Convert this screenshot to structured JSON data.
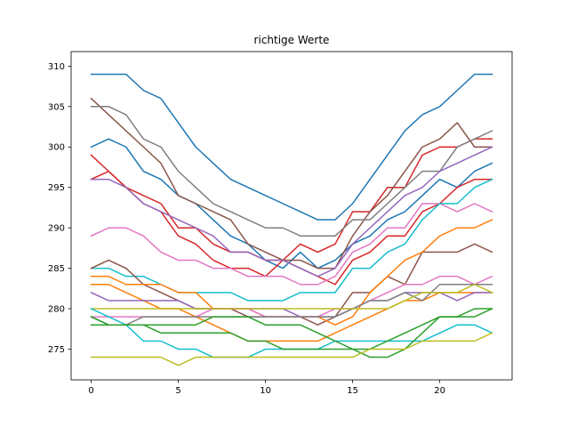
{
  "chart_data": {
    "type": "line",
    "title": "richtige Werte",
    "xlabel": "",
    "ylabel": "",
    "xlim": [
      -1.15,
      24.15
    ],
    "ylim": [
      271.2,
      311.8
    ],
    "grid": false,
    "legend": "none",
    "x": [
      0,
      1,
      2,
      3,
      4,
      5,
      6,
      7,
      8,
      9,
      10,
      11,
      12,
      13,
      14,
      15,
      16,
      17,
      18,
      19,
      20,
      21,
      22,
      23
    ],
    "x_ticks": [
      0,
      5,
      10,
      15,
      20
    ],
    "x_tick_labels": [
      "0",
      "5",
      "10",
      "15",
      "20"
    ],
    "y_ticks": [
      275,
      280,
      285,
      290,
      295,
      300,
      305,
      310
    ],
    "y_tick_labels": [
      "275",
      "280",
      "285",
      "290",
      "295",
      "300",
      "305",
      "310"
    ],
    "series": [
      {
        "color": "#1f77b4",
        "values": [
          309,
          309,
          309,
          307,
          306,
          303,
          300,
          298,
          296,
          295,
          294,
          293,
          292,
          291,
          291,
          293,
          296,
          299,
          302,
          304,
          305,
          307,
          309,
          309
        ]
      },
      {
        "color": "#1f77b4",
        "values": [
          300,
          301,
          300,
          297,
          296,
          294,
          293,
          291,
          289,
          288,
          286,
          285,
          287,
          285,
          286,
          288,
          289,
          291,
          292,
          294,
          296,
          295,
          297,
          298
        ]
      },
      {
        "color": "#d62728",
        "values": [
          299,
          297,
          295,
          293,
          292,
          289,
          288,
          286,
          285,
          285,
          284,
          286,
          288,
          287,
          288,
          292,
          292,
          295,
          295,
          299,
          300,
          300,
          301,
          301
        ]
      },
      {
        "color": "#d62728",
        "values": [
          296,
          297,
          295,
          294,
          293,
          290,
          290,
          288,
          287,
          287,
          286,
          286,
          285,
          284,
          283,
          286,
          287,
          289,
          289,
          292,
          293,
          295,
          296,
          296
        ]
      },
      {
        "color": "#8c564b",
        "values": [
          306,
          304,
          302,
          300,
          298,
          294,
          293,
          292,
          291,
          288,
          287,
          286,
          286,
          285,
          285,
          289,
          292,
          294,
          297,
          300,
          301,
          303,
          300,
          300
        ]
      },
      {
        "color": "#7f7f7f",
        "values": [
          305,
          305,
          304,
          301,
          300,
          297,
          295,
          293,
          292,
          291,
          290,
          290,
          289,
          289,
          289,
          291,
          291,
          293,
          295,
          297,
          297,
          300,
          301,
          302
        ]
      },
      {
        "color": "#9467bd",
        "values": [
          296,
          296,
          295,
          293,
          292,
          291,
          290,
          289,
          287,
          287,
          286,
          286,
          285,
          284,
          285,
          288,
          290,
          292,
          294,
          295,
          297,
          298,
          299,
          300
        ]
      },
      {
        "color": "#e377c2",
        "values": [
          289,
          290,
          290,
          289,
          287,
          286,
          286,
          285,
          285,
          284,
          284,
          284,
          283,
          283,
          284,
          287,
          288,
          290,
          290,
          293,
          293,
          292,
          293,
          292
        ]
      },
      {
        "color": "#17becf",
        "values": [
          285,
          285,
          284,
          284,
          283,
          282,
          282,
          282,
          282,
          281,
          281,
          281,
          282,
          282,
          282,
          285,
          285,
          287,
          288,
          291,
          293,
          293,
          295,
          296
        ]
      },
      {
        "color": "#8c564b",
        "values": [
          285,
          286,
          285,
          283,
          282,
          281,
          280,
          280,
          280,
          279,
          279,
          279,
          279,
          278,
          279,
          282,
          282,
          284,
          283,
          287,
          287,
          287,
          288,
          287
        ]
      },
      {
        "color": "#ff7f0e",
        "values": [
          284,
          284,
          283,
          283,
          283,
          282,
          282,
          280,
          280,
          280,
          279,
          279,
          279,
          279,
          278,
          279,
          282,
          284,
          286,
          287,
          289,
          290,
          290,
          291
        ]
      },
      {
        "color": "#ff7f0e",
        "values": [
          283,
          283,
          282,
          281,
          280,
          280,
          279,
          278,
          277,
          276,
          276,
          276,
          276,
          276,
          277,
          278,
          279,
          280,
          281,
          281,
          282,
          282,
          282,
          282
        ]
      },
      {
        "color": "#9467bd",
        "values": [
          282,
          281,
          281,
          281,
          281,
          281,
          280,
          280,
          280,
          280,
          280,
          280,
          279,
          279,
          279,
          280,
          281,
          281,
          282,
          282,
          282,
          281,
          282,
          282
        ]
      },
      {
        "color": "#e377c2",
        "values": [
          279,
          279,
          279,
          279,
          279,
          279,
          279,
          280,
          280,
          280,
          279,
          279,
          279,
          279,
          280,
          280,
          281,
          282,
          283,
          283,
          284,
          284,
          283,
          284
        ]
      },
      {
        "color": "#7f7f7f",
        "values": [
          279,
          278,
          278,
          279,
          279,
          279,
          279,
          279,
          279,
          279,
          279,
          279,
          279,
          279,
          279,
          280,
          281,
          281,
          282,
          281,
          283,
          283,
          283,
          283
        ]
      },
      {
        "color": "#bcbd22",
        "values": [
          280,
          280,
          280,
          280,
          280,
          280,
          280,
          280,
          280,
          280,
          280,
          280,
          280,
          280,
          280,
          280,
          280,
          280,
          281,
          282,
          282,
          282,
          283,
          282
        ]
      },
      {
        "color": "#17becf",
        "values": [
          280,
          279,
          278,
          276,
          276,
          275,
          275,
          274,
          274,
          274,
          275,
          275,
          275,
          275,
          276,
          276,
          276,
          276,
          276,
          276,
          277,
          278,
          278,
          277
        ]
      },
      {
        "color": "#2ca02c",
        "values": [
          278,
          278,
          278,
          278,
          278,
          278,
          278,
          279,
          279,
          279,
          278,
          278,
          278,
          277,
          276,
          275,
          274,
          274,
          275,
          277,
          279,
          279,
          279,
          280
        ]
      },
      {
        "color": "#2ca02c",
        "values": [
          279,
          278,
          278,
          278,
          277,
          277,
          277,
          277,
          277,
          276,
          276,
          275,
          275,
          275,
          275,
          275,
          275,
          276,
          277,
          278,
          279,
          279,
          280,
          280
        ]
      },
      {
        "color": "#bcbd22",
        "values": [
          274,
          274,
          274,
          274,
          274,
          273,
          274,
          274,
          274,
          274,
          274,
          274,
          274,
          274,
          274,
          274,
          275,
          275,
          275,
          276,
          276,
          276,
          276,
          277
        ]
      }
    ]
  }
}
